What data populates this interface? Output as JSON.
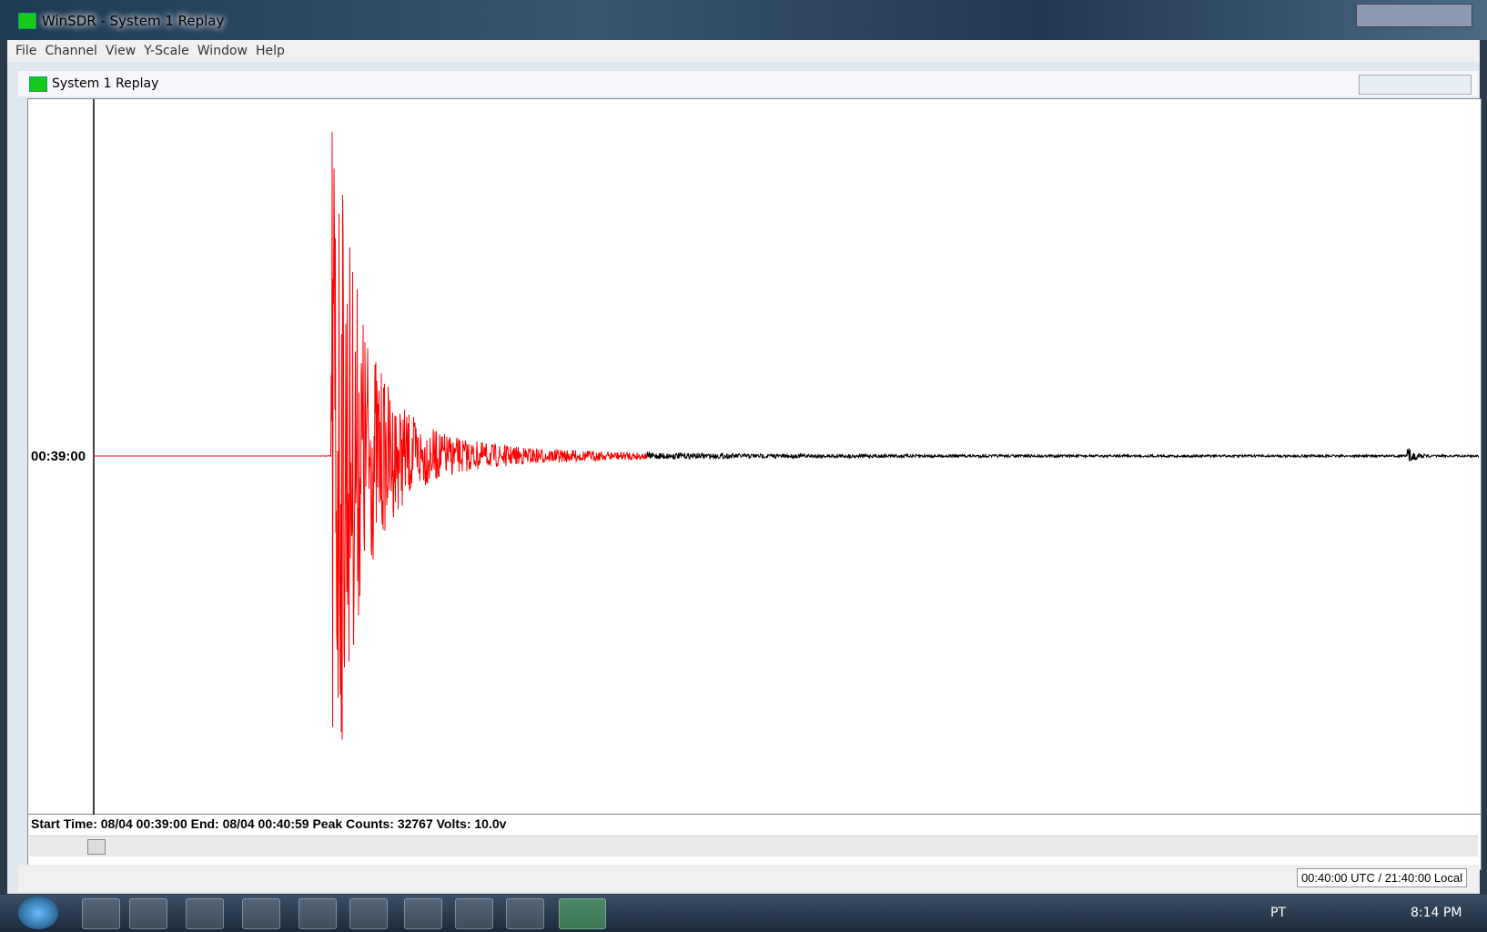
{
  "window": {
    "title": "WinSDR - System 1 Replay",
    "menu": [
      "File",
      "Channel",
      "View",
      "Y-Scale",
      "Window",
      "Help"
    ]
  },
  "child_window": {
    "title": "System 1 Replay",
    "trace_label": "00:39:00",
    "info_line": "Start Time: 08/04 00:39:00  End: 08/04 00:40:59  Peak Counts: 32767  Volts: 10.0v"
  },
  "status_bar": {
    "time": "00:40:00 UTC / 21:40:00 Local"
  },
  "taskbar": {
    "language": "PT",
    "clock": "8:14 PM"
  }
}
